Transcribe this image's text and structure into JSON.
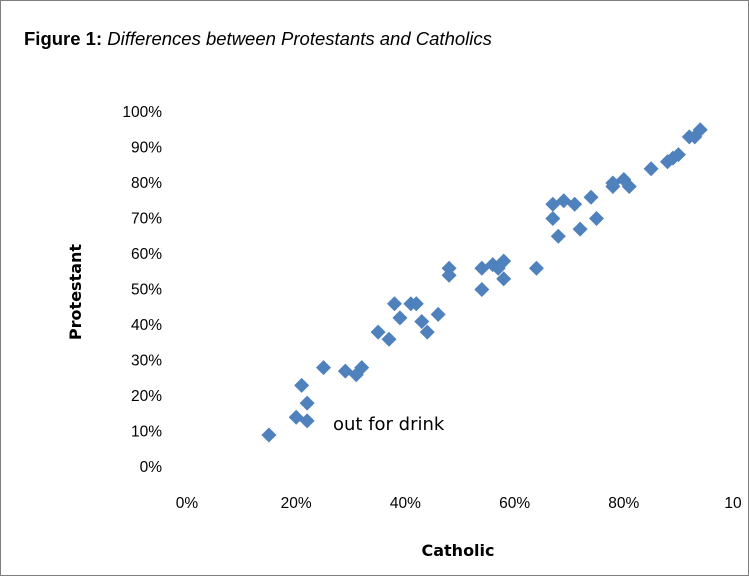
{
  "figure": {
    "label": "Figure 1:",
    "title": "Differences between Protestants and Catholics"
  },
  "chart_data": {
    "type": "scatter",
    "xlabel": "Catholic",
    "ylabel": "Protestant",
    "xlim": [
      0,
      1
    ],
    "ylim": [
      0,
      1
    ],
    "x_ticks": [
      "0%",
      "20%",
      "40%",
      "60%",
      "80%",
      "10"
    ],
    "y_ticks": [
      "0%",
      "10%",
      "20%",
      "30%",
      "40%",
      "50%",
      "60%",
      "70%",
      "80%",
      "90%",
      "100%"
    ],
    "marker_color": "#4f81bd",
    "marker": "diamond",
    "grid": false,
    "annotation": {
      "text": "out for drink",
      "near": [
        0.22,
        0.13
      ]
    },
    "points": [
      [
        0.15,
        0.09
      ],
      [
        0.2,
        0.14
      ],
      [
        0.21,
        0.23
      ],
      [
        0.22,
        0.13
      ],
      [
        0.22,
        0.18
      ],
      [
        0.25,
        0.28
      ],
      [
        0.29,
        0.27
      ],
      [
        0.31,
        0.26
      ],
      [
        0.32,
        0.28
      ],
      [
        0.35,
        0.38
      ],
      [
        0.37,
        0.36
      ],
      [
        0.38,
        0.46
      ],
      [
        0.39,
        0.42
      ],
      [
        0.41,
        0.46
      ],
      [
        0.42,
        0.46
      ],
      [
        0.43,
        0.41
      ],
      [
        0.44,
        0.38
      ],
      [
        0.46,
        0.43
      ],
      [
        0.48,
        0.56
      ],
      [
        0.48,
        0.54
      ],
      [
        0.54,
        0.56
      ],
      [
        0.54,
        0.5
      ],
      [
        0.56,
        0.57
      ],
      [
        0.57,
        0.56
      ],
      [
        0.58,
        0.53
      ],
      [
        0.58,
        0.58
      ],
      [
        0.64,
        0.56
      ],
      [
        0.67,
        0.74
      ],
      [
        0.67,
        0.7
      ],
      [
        0.68,
        0.65
      ],
      [
        0.69,
        0.75
      ],
      [
        0.71,
        0.74
      ],
      [
        0.72,
        0.67
      ],
      [
        0.74,
        0.76
      ],
      [
        0.75,
        0.7
      ],
      [
        0.78,
        0.8
      ],
      [
        0.78,
        0.79
      ],
      [
        0.8,
        0.81
      ],
      [
        0.81,
        0.79
      ],
      [
        0.85,
        0.84
      ],
      [
        0.88,
        0.86
      ],
      [
        0.89,
        0.87
      ],
      [
        0.9,
        0.88
      ],
      [
        0.92,
        0.93
      ],
      [
        0.93,
        0.93
      ],
      [
        0.94,
        0.95
      ]
    ]
  }
}
